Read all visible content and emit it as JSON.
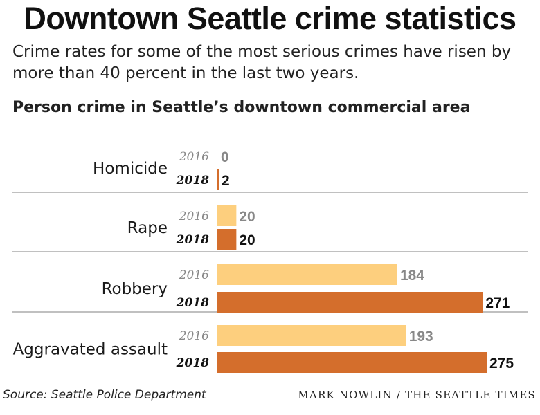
{
  "title": "Downtown Seattle crime statistics",
  "subtitle": "Crime rates for some of the most serious crimes have risen by more than 40 percent in the last two years.",
  "section_title": "Person crime in Seattle’s downtown commercial area",
  "source": "Source: Seattle Police Department",
  "credit": "MARK NOWLIN / THE SEATTLE TIMES",
  "colors": {
    "y2016": "#fdcf7e",
    "y2018": "#d46e2c",
    "label2016": "#888888",
    "label2018": "#111111",
    "divider": "#9a9a9a"
  },
  "chart_data": {
    "type": "bar",
    "orientation": "horizontal",
    "categories": [
      "Homicide",
      "Rape",
      "Robbery",
      "Aggravated assault"
    ],
    "series": [
      {
        "name": "2016",
        "values": [
          0,
          20,
          184,
          193
        ]
      },
      {
        "name": "2018",
        "values": [
          2,
          20,
          271,
          275
        ]
      }
    ],
    "xlim": [
      0,
      275
    ],
    "grid": false
  }
}
